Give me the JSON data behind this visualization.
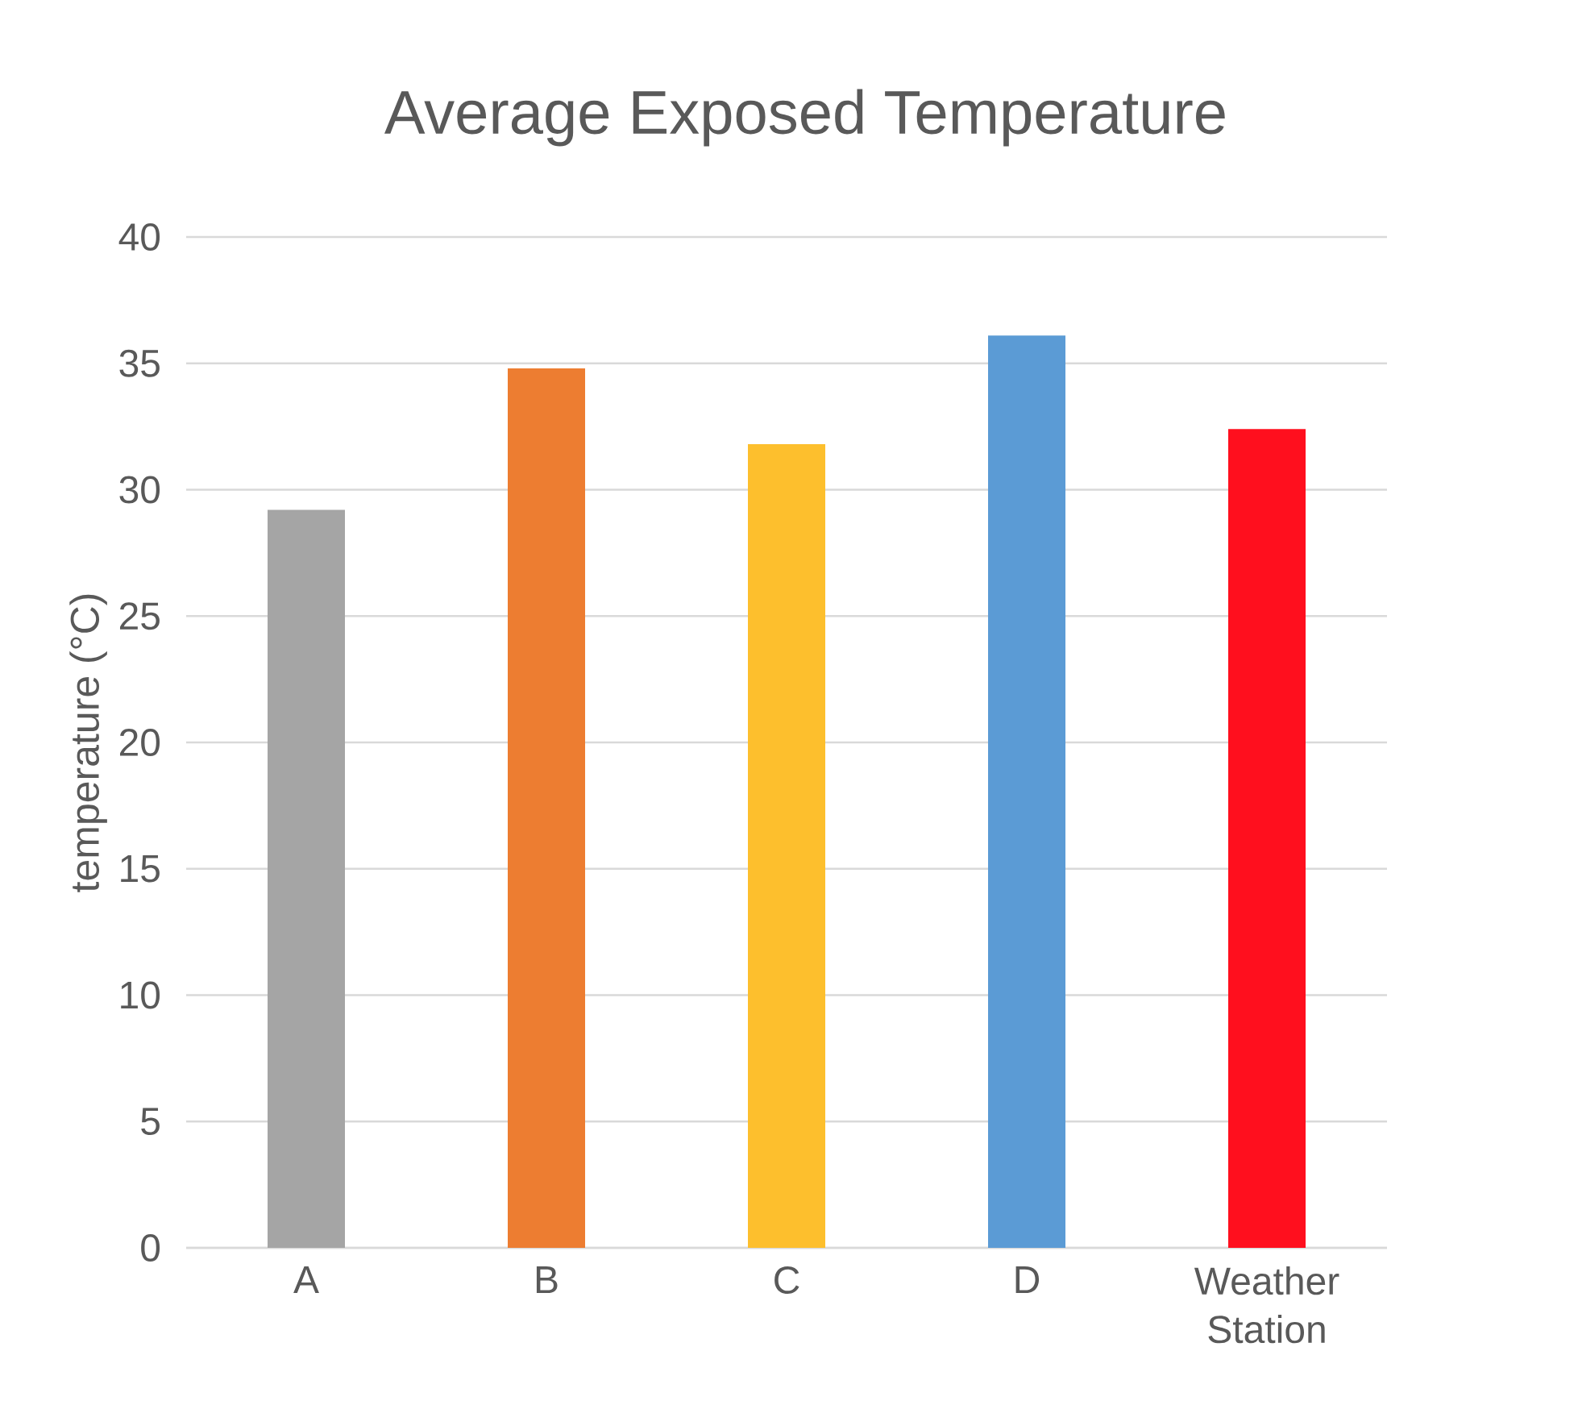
{
  "chart_data": {
    "type": "bar",
    "title": "Average Exposed Temperature",
    "ylabel": "temperature (°C)",
    "categories": [
      "A",
      "B",
      "C",
      "D",
      "Weather Station"
    ],
    "values": [
      29.2,
      34.8,
      31.8,
      36.1,
      32.4
    ],
    "colors": [
      "#a5a5a5",
      "#ed7d31",
      "#fdbf2d",
      "#5b9bd5",
      "#ff0f1e"
    ],
    "ylim": [
      0,
      40
    ],
    "yticks": [
      0,
      5,
      10,
      15,
      20,
      25,
      30,
      35,
      40
    ],
    "grid": "y"
  }
}
